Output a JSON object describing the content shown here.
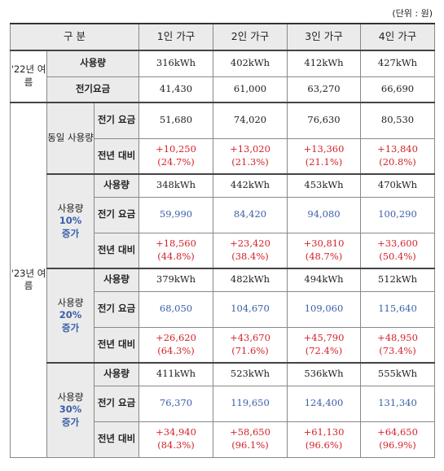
{
  "unit_label": "(단위 : 원)",
  "header": {
    "col0": "구 분",
    "cols": [
      "1인 가구",
      "2인 가구",
      "3인 가구",
      "4인 가구"
    ]
  },
  "y22": {
    "year": "'22년 여름",
    "usage_label": "사용량",
    "usage": [
      "316kWh",
      "402kWh",
      "412kWh",
      "427kWh"
    ],
    "bill_label": "전기요금",
    "bill": [
      "41,430",
      "61,000",
      "63,270",
      "66,690"
    ]
  },
  "y23": {
    "year": "'23년 여름",
    "same": {
      "group": "동일 사용량",
      "bill_label": "전기 요금",
      "bill": [
        "51,680",
        "74,020",
        "76,630",
        "80,530"
      ],
      "diff_label": "전년 대비",
      "diff": [
        "+10,250",
        "+13,020",
        "+13,360",
        "+13,840"
      ],
      "pct": [
        "(24.7%)",
        "(21.3%)",
        "(21.1%)",
        "(20.8%)"
      ]
    },
    "inc10": {
      "group_top": "사용량",
      "group_pct": "10%",
      "group_bottom": "증가",
      "usage_label": "사용량",
      "usage": [
        "348kWh",
        "442kWh",
        "453kWh",
        "470kWh"
      ],
      "bill_label": "전기 요금",
      "bill": [
        "59,990",
        "84,420",
        "94,080",
        "100,290"
      ],
      "diff_label": "전년 대비",
      "diff": [
        "+18,560",
        "+23,420",
        "+30,810",
        "+33,600"
      ],
      "pct": [
        "(44.8%)",
        "(38.4%)",
        "(48.7%)",
        "(50.4%)"
      ]
    },
    "inc20": {
      "group_top": "사용량",
      "group_pct": "20%",
      "group_bottom": "증가",
      "usage_label": "사용량",
      "usage": [
        "379kWh",
        "482kWh",
        "494kWh",
        "512kWh"
      ],
      "bill_label": "전기 요금",
      "bill": [
        "68,050",
        "104,670",
        "109,060",
        "115,640"
      ],
      "diff_label": "전년 대비",
      "diff": [
        "+26,620",
        "+43,670",
        "+45,790",
        "+48,950"
      ],
      "pct": [
        "(64.3%)",
        "(71.6%)",
        "(72.4%)",
        "(73.4%)"
      ]
    },
    "inc30": {
      "group_top": "사용량",
      "group_pct": "30%",
      "group_bottom": "증가",
      "usage_label": "사용량",
      "usage": [
        "411kWh",
        "523kWh",
        "536kWh",
        "555kWh"
      ],
      "bill_label": "전기 요금",
      "bill": [
        "76,370",
        "119,650",
        "124,400",
        "131,340"
      ],
      "diff_label": "전년 대비",
      "diff": [
        "+34,940",
        "+58,650",
        "+61,130",
        "+64,650"
      ],
      "pct": [
        "(84.3%)",
        "(96.1%)",
        "(96.6%)",
        "(96.9%)"
      ]
    }
  },
  "colors": {
    "red": "#d2232a",
    "blue": "#3a5fa8",
    "header_bg": "#ebebeb"
  }
}
